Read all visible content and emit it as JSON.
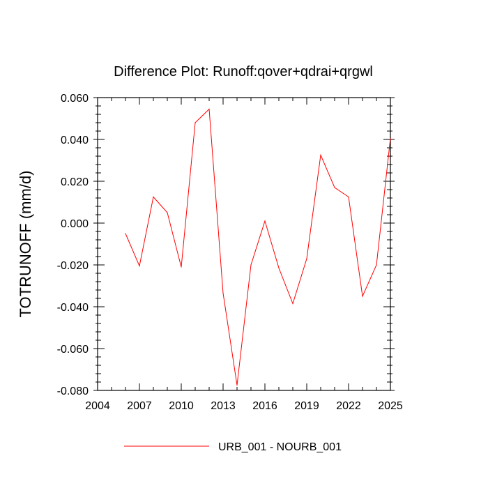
{
  "chart_data": {
    "type": "line",
    "title": "Difference Plot: Runoff:qover+qdrai+qrgwl",
    "xlabel": "",
    "ylabel": "TOTRUNOFF  (mm/d)",
    "xlim": [
      2004,
      2025
    ],
    "ylim": [
      -0.08,
      0.06
    ],
    "x_ticks": [
      "2004",
      "2007",
      "2010",
      "2013",
      "2016",
      "2019",
      "2022",
      "2025"
    ],
    "y_ticks": [
      "0.060",
      "0.040",
      "0.020",
      "0.000",
      "-0.020",
      "-0.040",
      "-0.060",
      "-0.080"
    ],
    "grid": false,
    "legend_position": "bottom-center",
    "series": [
      {
        "name": "URB_001 - NOURB_001",
        "color": "#ff0000",
        "x": [
          2006,
          2007,
          2008,
          2009,
          2010,
          2011,
          2012,
          2013,
          2014,
          2015,
          2016,
          2017,
          2018,
          2019,
          2020,
          2021,
          2022,
          2023,
          2024,
          2025
        ],
        "values": [
          -0.005,
          -0.0205,
          0.0125,
          0.005,
          -0.021,
          0.048,
          0.0545,
          -0.0335,
          -0.0775,
          -0.02,
          0.001,
          -0.0215,
          -0.0385,
          -0.017,
          0.0325,
          0.017,
          0.0125,
          -0.035,
          -0.02,
          0.0405
        ]
      }
    ]
  }
}
